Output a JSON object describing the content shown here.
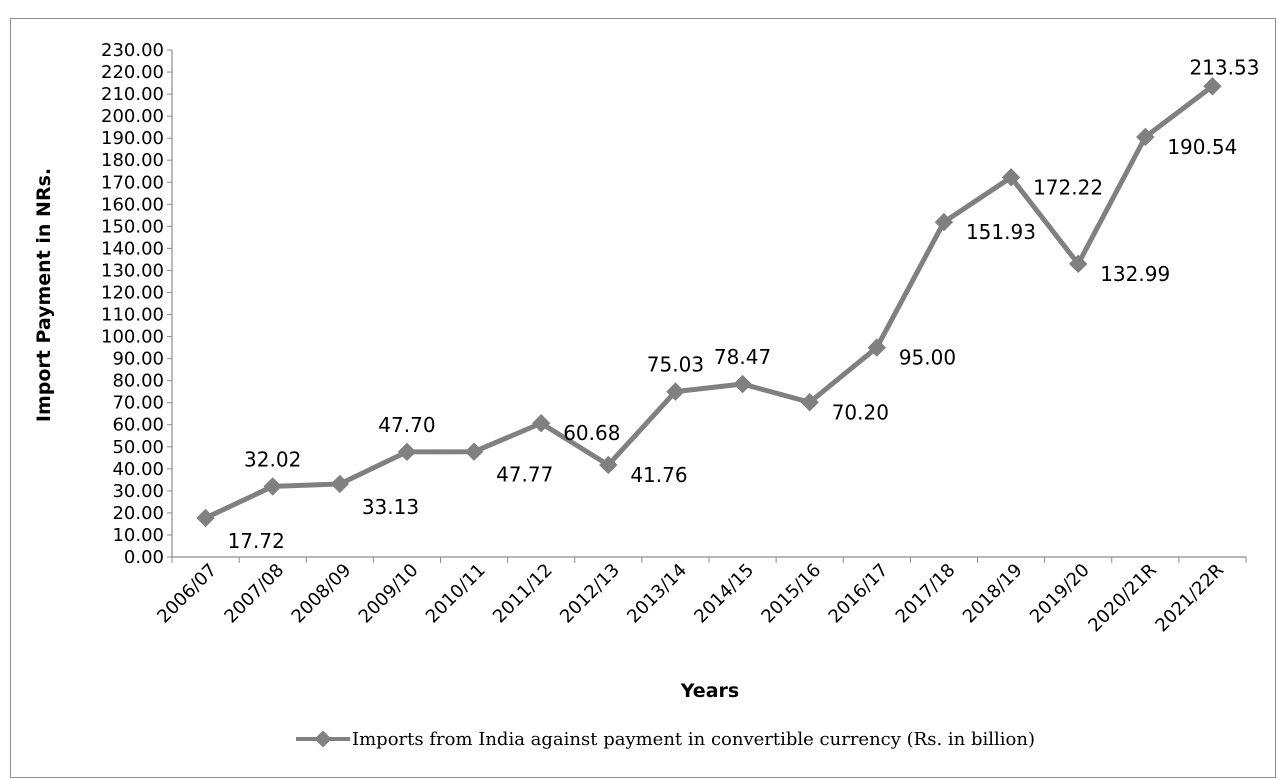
{
  "chart_data": {
    "type": "line",
    "title": "",
    "xlabel": "Years",
    "ylabel": "Import Payment in NRs.",
    "categories": [
      "2006/07",
      "2007/08",
      "2008/09",
      "2009/10",
      "2010/11",
      "2011/12",
      "2012/13",
      "2013/14",
      "2014/15",
      "2015/16",
      "2016/17",
      "2017/18",
      "2018/19",
      "2019/20",
      "2020/21R",
      "2021/22R"
    ],
    "series": [
      {
        "name": "Imports from India against payment in convertible currency (Rs. in billion)",
        "values": [
          17.72,
          32.02,
          33.13,
          47.7,
          47.77,
          60.68,
          41.76,
          75.03,
          78.47,
          70.2,
          95.0,
          151.93,
          172.22,
          132.99,
          190.54,
          213.53
        ],
        "color": "#808080"
      }
    ],
    "ylim": [
      0,
      230
    ],
    "ytick_step": 10,
    "ytick_decimals": 2,
    "grid": false,
    "legend": "bottom"
  },
  "legend": {
    "label": "Imports from India against payment in convertible currency (Rs. in billion)"
  }
}
